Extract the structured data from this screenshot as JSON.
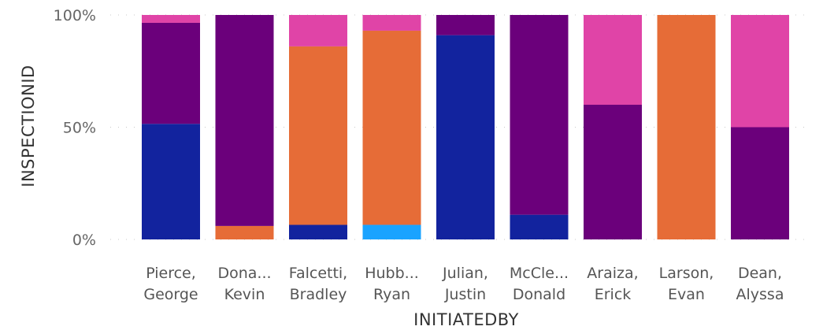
{
  "chart_data": {
    "type": "bar",
    "stacked": "100%",
    "xlabel": "INITIATEDBY",
    "ylabel": "INSPECTIONID",
    "ylim": [
      0,
      100
    ],
    "yticks": [
      "0%",
      "50%",
      "100%"
    ],
    "grid": true,
    "categories": [
      [
        "Pierce,",
        "George"
      ],
      [
        "Dona...",
        "Kevin"
      ],
      [
        "Falcetti,",
        "Bradley"
      ],
      [
        "Hubb...",
        "Ryan"
      ],
      [
        "Julian,",
        "Justin"
      ],
      [
        "McCle...",
        "Donald"
      ],
      [
        "Araiza,",
        "Erick"
      ],
      [
        "Larson,",
        "Evan"
      ],
      [
        "Dean,",
        "Alyssa"
      ]
    ],
    "series": [
      {
        "color": "#1aa3ff",
        "values": [
          0,
          0,
          0,
          6.5,
          0,
          0,
          0,
          0,
          0
        ]
      },
      {
        "color": "#12239e",
        "values": [
          51.5,
          0,
          6.5,
          0,
          91,
          11,
          0,
          0,
          0
        ]
      },
      {
        "color": "#e66c37",
        "values": [
          0,
          6,
          79.5,
          86.5,
          0,
          0,
          0,
          100,
          0
        ]
      },
      {
        "color": "#6b007b",
        "values": [
          45,
          94,
          0,
          0,
          9,
          89,
          60,
          0,
          50
        ]
      },
      {
        "color": "#e044a7",
        "values": [
          3.5,
          0,
          14,
          7,
          0,
          0,
          40,
          0,
          50
        ]
      }
    ]
  }
}
